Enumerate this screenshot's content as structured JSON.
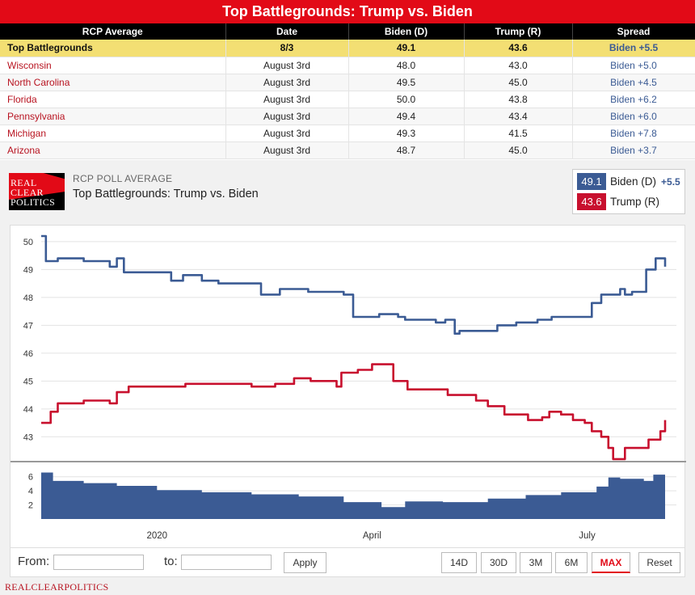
{
  "header": {
    "title": "Top Battlegrounds: Trump vs. Biden"
  },
  "table": {
    "columns": [
      "RCP Average",
      "Date",
      "Biden (D)",
      "Trump (R)",
      "Spread"
    ],
    "average": {
      "poll": "Top Battlegrounds",
      "date": "8/3",
      "biden": "49.1",
      "trump": "43.6",
      "spread": "Biden +5.5"
    },
    "rows": [
      {
        "poll": "Wisconsin",
        "date": "August 3rd",
        "biden": "48.0",
        "trump": "43.0",
        "spread": "Biden +5.0"
      },
      {
        "poll": "North Carolina",
        "date": "August 3rd",
        "biden": "49.5",
        "trump": "45.0",
        "spread": "Biden +4.5"
      },
      {
        "poll": "Florida",
        "date": "August 3rd",
        "biden": "50.0",
        "trump": "43.8",
        "spread": "Biden +6.2"
      },
      {
        "poll": "Pennsylvania",
        "date": "August 3rd",
        "biden": "49.4",
        "trump": "43.4",
        "spread": "Biden +6.0"
      },
      {
        "poll": "Michigan",
        "date": "August 3rd",
        "biden": "49.3",
        "trump": "41.5",
        "spread": "Biden +7.8"
      },
      {
        "poll": "Arizona",
        "date": "August 3rd",
        "biden": "48.7",
        "trump": "45.0",
        "spread": "Biden +3.7"
      }
    ]
  },
  "panel": {
    "logo_lines": [
      "REAL",
      "CLEAR",
      "POLITICS"
    ],
    "subtitle": "RCP POLL AVERAGE",
    "title": "Top Battlegrounds: Trump vs. Biden"
  },
  "legend": {
    "biden": {
      "value": "49.1",
      "name": "Biden (D)",
      "spread": "+5.5"
    },
    "trump": {
      "value": "43.6",
      "name": "Trump (R)"
    }
  },
  "controls": {
    "from_label": "From:",
    "to_label": "to:",
    "from_value": "",
    "to_value": "",
    "apply_label": "Apply",
    "ranges": [
      "14D",
      "30D",
      "3M",
      "6M",
      "MAX"
    ],
    "active_range": "MAX",
    "reset_label": "Reset"
  },
  "footer": {
    "brand": "REALCLEARPOLITICS"
  },
  "colors": {
    "biden": "#3b5b94",
    "trump": "#c8102e",
    "accent": "#e20a17",
    "highlight": "#f3df73"
  },
  "chart_data": [
    {
      "type": "line",
      "x_range": [
        "2019-11-13",
        "2020-08-03"
      ],
      "x_ticks": [
        {
          "date": "2020-01-01",
          "label": "2020"
        },
        {
          "date": "2020-04-01",
          "label": "April"
        },
        {
          "date": "2020-07-01",
          "label": "July"
        }
      ],
      "yticks": [
        43,
        44,
        45,
        46,
        47,
        48,
        49,
        50
      ],
      "ylim": [
        42.4,
        50.2
      ],
      "grid": true,
      "series": [
        {
          "name": "Biden (D)",
          "points": [
            [
              "2019-11-13",
              50.2
            ],
            [
              "2019-11-15",
              49.3
            ],
            [
              "2019-11-20",
              49.4
            ],
            [
              "2019-12-01",
              49.3
            ],
            [
              "2019-12-12",
              49.1
            ],
            [
              "2019-12-15",
              49.4
            ],
            [
              "2019-12-18",
              48.9
            ],
            [
              "2020-01-05",
              48.9
            ],
            [
              "2020-01-07",
              48.6
            ],
            [
              "2020-01-12",
              48.8
            ],
            [
              "2020-01-20",
              48.6
            ],
            [
              "2020-01-27",
              48.5
            ],
            [
              "2020-02-10",
              48.5
            ],
            [
              "2020-02-14",
              48.1
            ],
            [
              "2020-02-22",
              48.3
            ],
            [
              "2020-03-01",
              48.3
            ],
            [
              "2020-03-05",
              48.2
            ],
            [
              "2020-03-20",
              48.1
            ],
            [
              "2020-03-24",
              47.3
            ],
            [
              "2020-04-02",
              47.3
            ],
            [
              "2020-04-04",
              47.4
            ],
            [
              "2020-04-12",
              47.3
            ],
            [
              "2020-04-15",
              47.2
            ],
            [
              "2020-04-28",
              47.1
            ],
            [
              "2020-05-02",
              47.2
            ],
            [
              "2020-05-06",
              46.7
            ],
            [
              "2020-05-08",
              46.8
            ],
            [
              "2020-05-20",
              46.8
            ],
            [
              "2020-05-24",
              47.0
            ],
            [
              "2020-06-01",
              47.1
            ],
            [
              "2020-06-10",
              47.2
            ],
            [
              "2020-06-16",
              47.3
            ],
            [
              "2020-06-28",
              47.3
            ],
            [
              "2020-07-03",
              47.8
            ],
            [
              "2020-07-07",
              48.1
            ],
            [
              "2020-07-15",
              48.3
            ],
            [
              "2020-07-17",
              48.1
            ],
            [
              "2020-07-20",
              48.2
            ],
            [
              "2020-07-26",
              49.0
            ],
            [
              "2020-07-30",
              49.4
            ],
            [
              "2020-08-03",
              49.1
            ]
          ]
        },
        {
          "name": "Trump (R)",
          "points": [
            [
              "2019-11-13",
              43.5
            ],
            [
              "2019-11-17",
              43.9
            ],
            [
              "2019-11-20",
              44.2
            ],
            [
              "2019-12-01",
              44.3
            ],
            [
              "2019-12-12",
              44.2
            ],
            [
              "2019-12-15",
              44.6
            ],
            [
              "2019-12-20",
              44.8
            ],
            [
              "2020-01-10",
              44.8
            ],
            [
              "2020-01-13",
              44.9
            ],
            [
              "2020-02-05",
              44.9
            ],
            [
              "2020-02-10",
              44.8
            ],
            [
              "2020-02-20",
              44.9
            ],
            [
              "2020-02-28",
              45.1
            ],
            [
              "2020-03-06",
              45.0
            ],
            [
              "2020-03-14",
              45.0
            ],
            [
              "2020-03-17",
              44.8
            ],
            [
              "2020-03-19",
              45.3
            ],
            [
              "2020-03-26",
              45.4
            ],
            [
              "2020-04-01",
              45.6
            ],
            [
              "2020-04-08",
              45.6
            ],
            [
              "2020-04-10",
              45.0
            ],
            [
              "2020-04-16",
              44.7
            ],
            [
              "2020-04-30",
              44.7
            ],
            [
              "2020-05-03",
              44.5
            ],
            [
              "2020-05-12",
              44.5
            ],
            [
              "2020-05-15",
              44.3
            ],
            [
              "2020-05-20",
              44.1
            ],
            [
              "2020-05-27",
              43.8
            ],
            [
              "2020-06-02",
              43.8
            ],
            [
              "2020-06-06",
              43.6
            ],
            [
              "2020-06-12",
              43.7
            ],
            [
              "2020-06-15",
              43.9
            ],
            [
              "2020-06-20",
              43.8
            ],
            [
              "2020-06-25",
              43.6
            ],
            [
              "2020-06-30",
              43.5
            ],
            [
              "2020-07-03",
              43.2
            ],
            [
              "2020-07-07",
              43.0
            ],
            [
              "2020-07-10",
              42.6
            ],
            [
              "2020-07-12",
              42.2
            ],
            [
              "2020-07-17",
              42.6
            ],
            [
              "2020-07-25",
              42.6
            ],
            [
              "2020-07-27",
              42.9
            ],
            [
              "2020-08-01",
              43.2
            ],
            [
              "2020-08-03",
              43.6
            ]
          ]
        }
      ]
    },
    {
      "type": "area",
      "name": "Spread",
      "yticks": [
        2,
        4,
        6
      ],
      "ylim": [
        0,
        7
      ],
      "points": [
        [
          "2019-11-13",
          6.6
        ],
        [
          "2019-11-18",
          5.4
        ],
        [
          "2019-12-01",
          5.1
        ],
        [
          "2019-12-15",
          4.7
        ],
        [
          "2020-01-01",
          4.1
        ],
        [
          "2020-01-20",
          3.8
        ],
        [
          "2020-02-10",
          3.5
        ],
        [
          "2020-03-01",
          3.2
        ],
        [
          "2020-03-20",
          2.4
        ],
        [
          "2020-04-05",
          1.7
        ],
        [
          "2020-04-15",
          2.5
        ],
        [
          "2020-05-01",
          2.4
        ],
        [
          "2020-05-20",
          2.9
        ],
        [
          "2020-06-05",
          3.4
        ],
        [
          "2020-06-20",
          3.8
        ],
        [
          "2020-07-05",
          4.6
        ],
        [
          "2020-07-10",
          5.9
        ],
        [
          "2020-07-15",
          5.7
        ],
        [
          "2020-07-25",
          5.4
        ],
        [
          "2020-07-29",
          6.3
        ],
        [
          "2020-08-03",
          5.5
        ]
      ]
    }
  ]
}
